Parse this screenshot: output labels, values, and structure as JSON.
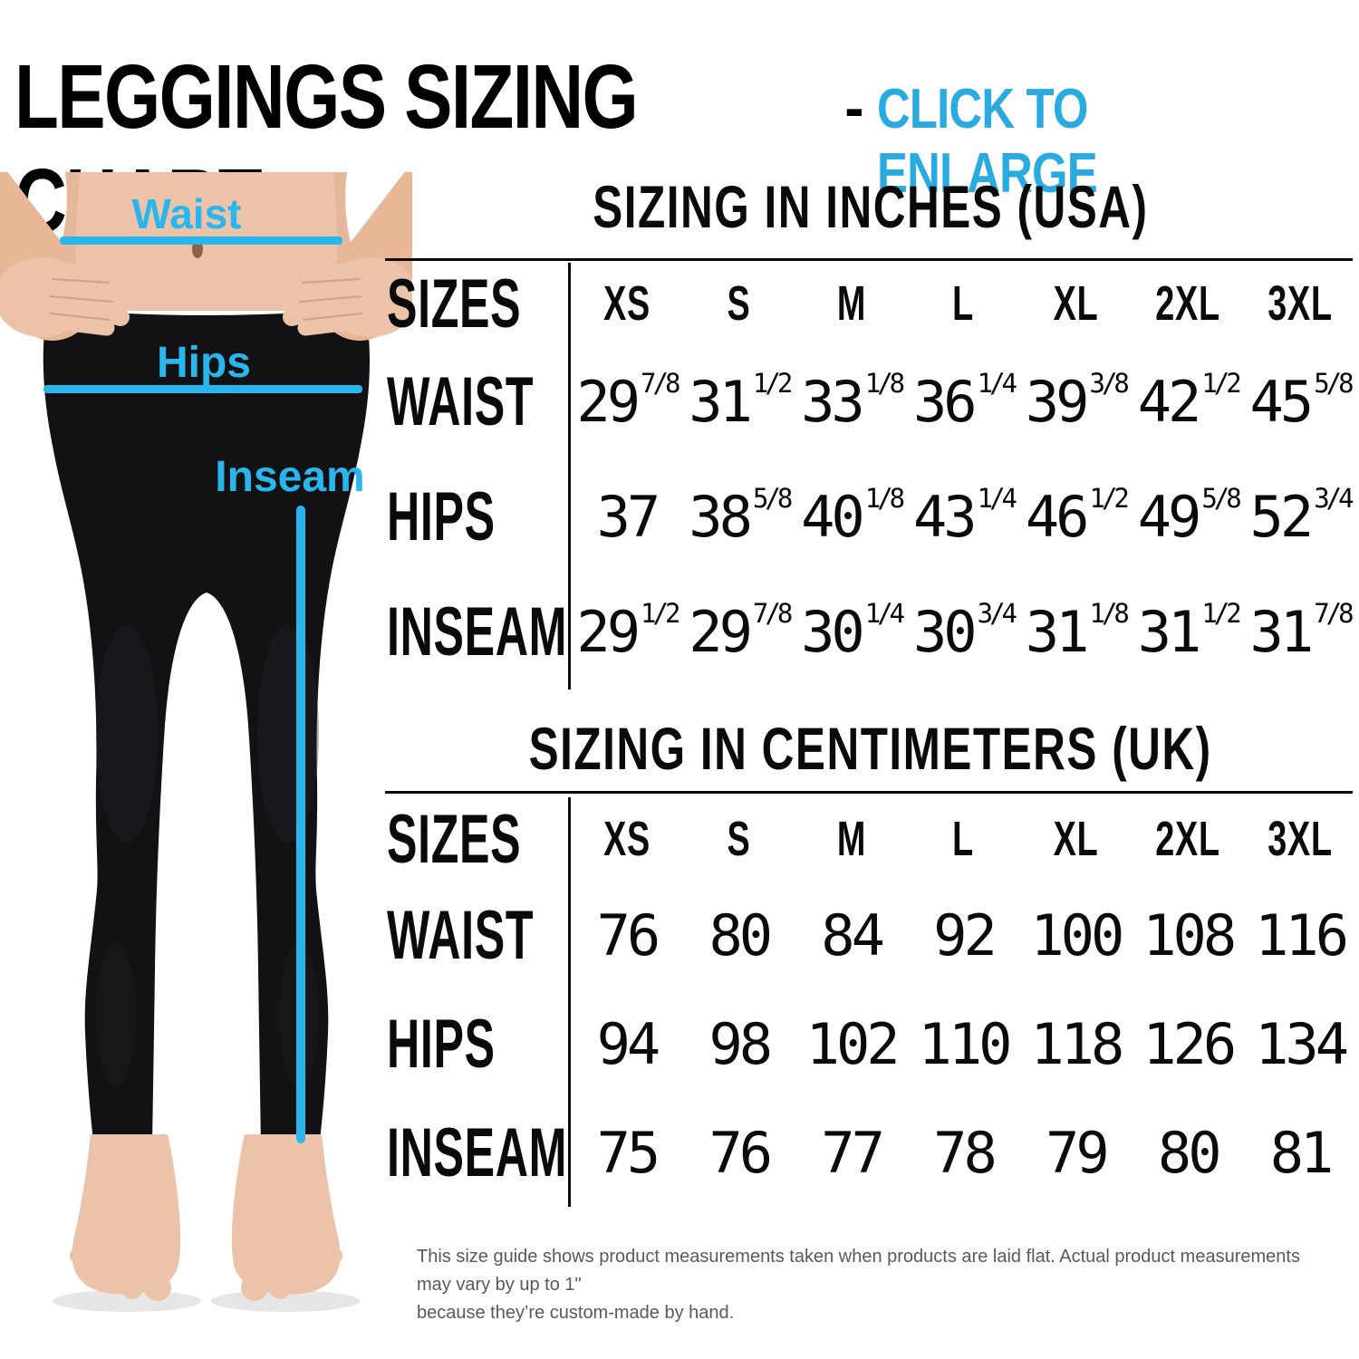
{
  "title": {
    "main": "LEGGINGS SIZING CHART",
    "separator": "-",
    "action": "CLICK TO ENLARGE"
  },
  "figure": {
    "labels": {
      "waist": "Waist",
      "hips": "Hips",
      "inseam": "Inseam"
    }
  },
  "chart_data": [
    {
      "type": "table",
      "title": "SIZING IN INCHES (USA)",
      "columns": [
        "SIZES",
        "XS",
        "S",
        "M",
        "L",
        "XL",
        "2XL",
        "3XL"
      ],
      "rows": [
        {
          "label": "WAIST",
          "values": [
            "29 7/8",
            "31 1/2",
            "33 1/8",
            "36 1/4",
            "39 3/8",
            "42 1/2",
            "45 5/8"
          ]
        },
        {
          "label": "HIPS",
          "values": [
            "37",
            "38 5/8",
            "40 1/8",
            "43 1/4",
            "46 1/2",
            "49 5/8",
            "52 3/4"
          ]
        },
        {
          "label": "INSEAM",
          "values": [
            "29 1/2",
            "29 7/8",
            "30 1/4",
            "30 3/4",
            "31 1/8",
            "31 1/2",
            "31 7/8"
          ]
        }
      ]
    },
    {
      "type": "table",
      "title": "SIZING IN CENTIMETERS (UK)",
      "columns": [
        "SIZES",
        "XS",
        "S",
        "M",
        "L",
        "XL",
        "2XL",
        "3XL"
      ],
      "rows": [
        {
          "label": "WAIST",
          "values": [
            "76",
            "80",
            "84",
            "92",
            "100",
            "108",
            "116"
          ]
        },
        {
          "label": "HIPS",
          "values": [
            "94",
            "98",
            "102",
            "110",
            "118",
            "126",
            "134"
          ]
        },
        {
          "label": "INSEAM",
          "values": [
            "75",
            "76",
            "77",
            "78",
            "79",
            "80",
            "81"
          ]
        }
      ]
    }
  ],
  "footer": {
    "line1": "This size guide shows product measurements taken when products are laid flat. Actual product measurements may vary by up to 1\"",
    "line2": "because they’re custom-made by hand."
  },
  "colors": {
    "accent_cyan": "#29ABE2",
    "line_cyan": "#29B6EC",
    "ink": "#0A0A0A",
    "note_gray": "#565A5C"
  }
}
